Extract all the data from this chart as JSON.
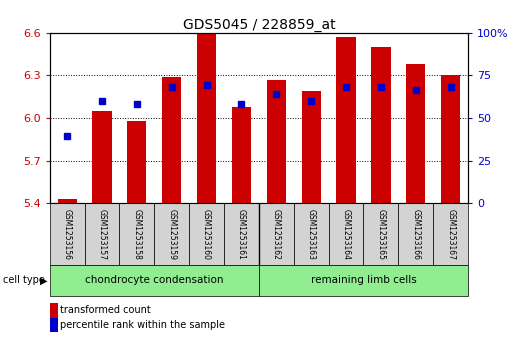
{
  "title": "GDS5045 / 228859_at",
  "samples": [
    "GSM1253156",
    "GSM1253157",
    "GSM1253158",
    "GSM1253159",
    "GSM1253160",
    "GSM1253161",
    "GSM1253162",
    "GSM1253163",
    "GSM1253164",
    "GSM1253165",
    "GSM1253166",
    "GSM1253167"
  ],
  "red_values": [
    5.43,
    6.05,
    5.98,
    6.29,
    6.6,
    6.08,
    6.27,
    6.19,
    6.57,
    6.5,
    6.38,
    6.3
  ],
  "blue_values": [
    5.87,
    6.12,
    6.1,
    6.22,
    6.23,
    6.1,
    6.17,
    6.12,
    6.22,
    6.22,
    6.2,
    6.22
  ],
  "ylim_left": [
    5.4,
    6.6
  ],
  "ylim_right": [
    0,
    100
  ],
  "yticks_left": [
    5.4,
    5.7,
    6.0,
    6.3,
    6.6
  ],
  "yticks_right": [
    0,
    25,
    50,
    75,
    100
  ],
  "bar_color": "#cc0000",
  "dot_color": "#0000cc",
  "legend_red": "transformed count",
  "legend_blue": "percentile rank within the sample",
  "tick_color_left": "#cc0000",
  "tick_color_right": "#0000cc",
  "bar_bottom": 5.4,
  "bar_width": 0.55,
  "n_chondro": 6,
  "cell_type_label_chondro": "chondrocyte condensation",
  "cell_type_label_remaining": "remaining limb cells",
  "cell_type_color": "#90ee90",
  "sample_box_color": "#d3d3d3"
}
